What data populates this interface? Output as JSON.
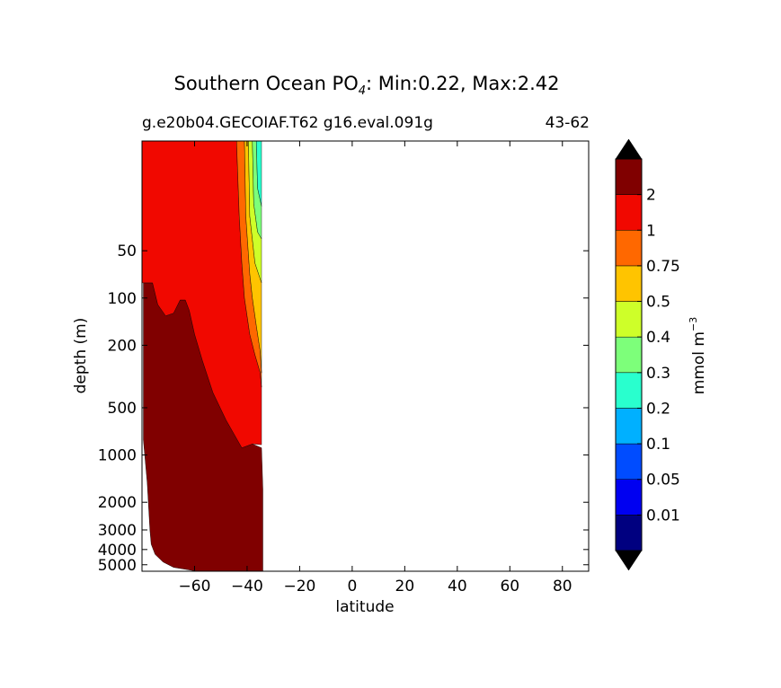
{
  "chart_data": {
    "type": "contour",
    "title_prefix": "Southern Ocean PO",
    "title_subscript": "4",
    "title_suffix": ": Min:0.22, Max:2.42",
    "subtitle_left": "g.e20b04.GECOIAF.T62 g16.eval.091g",
    "subtitle_right": "43-62",
    "xlabel": "latitude",
    "ylabel": "depth (m)",
    "xlim": [
      -80,
      90
    ],
    "ylim_depth": [
      10,
      5500
    ],
    "xticks": [
      {
        "value": -60,
        "label": "−60"
      },
      {
        "value": -40,
        "label": "−40"
      },
      {
        "value": -20,
        "label": "−20"
      },
      {
        "value": 0,
        "label": "0"
      },
      {
        "value": 20,
        "label": "20"
      },
      {
        "value": 40,
        "label": "40"
      },
      {
        "value": 60,
        "label": "60"
      },
      {
        "value": 80,
        "label": "80"
      }
    ],
    "yticks": [
      {
        "value": 50,
        "label": "50"
      },
      {
        "value": 100,
        "label": "100"
      },
      {
        "value": 200,
        "label": "200"
      },
      {
        "value": 500,
        "label": "500"
      },
      {
        "value": 1000,
        "label": "1000"
      },
      {
        "value": 2000,
        "label": "2000"
      },
      {
        "value": 3000,
        "label": "3000"
      },
      {
        "value": 4000,
        "label": "4000"
      },
      {
        "value": 5000,
        "label": "5000"
      }
    ],
    "colorbar": {
      "label_prefix": "mmol m",
      "label_exp": "−3",
      "levels": [
        "0.01",
        "0.05",
        "0.1",
        "0.2",
        "0.3",
        "0.4",
        "0.5",
        "0.75",
        "1",
        "2"
      ],
      "colors": [
        "#000080",
        "#0000f1",
        "#004cff",
        "#00b0ff",
        "#29ffce",
        "#7dff7a",
        "#ceff29",
        "#ffc400",
        "#ff6800",
        "#f10800",
        "#800000"
      ],
      "under_color": "#000000",
      "over_color": "#000000"
    },
    "regions": [
      {
        "name": "deep-maroon",
        "level_min": 2,
        "level_max": 2.42,
        "color": "#800000",
        "outline": [
          [
            -79.5,
            10
          ],
          [
            -79.5,
            800
          ],
          [
            -78,
            1500
          ],
          [
            -77,
            3000
          ],
          [
            -76.5,
            3700
          ],
          [
            -75,
            4300
          ],
          [
            -72,
            4800
          ],
          [
            -68,
            5200
          ],
          [
            -59,
            5500
          ],
          [
            -34,
            5500
          ],
          [
            -34,
            1650
          ],
          [
            -34.5,
            900
          ],
          [
            -38,
            850
          ],
          [
            -42,
            900
          ],
          [
            -48,
            600
          ],
          [
            -53,
            400
          ],
          [
            -57,
            250
          ],
          [
            -60,
            170
          ],
          [
            -62,
            120
          ],
          [
            -63.5,
            103
          ],
          [
            -65.5,
            103
          ],
          [
            -68,
            125
          ],
          [
            -71,
            130
          ],
          [
            -74,
            110
          ],
          [
            -76,
            80
          ],
          [
            -79.5,
            80
          ]
        ]
      },
      {
        "name": "red-1-2",
        "level_min": 1,
        "level_max": 2,
        "color": "#f10800",
        "outline": [
          [
            -80,
            10
          ],
          [
            -44,
            10
          ],
          [
            -43,
            30
          ],
          [
            -42,
            60
          ],
          [
            -41,
            100
          ],
          [
            -39,
            170
          ],
          [
            -37,
            230
          ],
          [
            -35,
            300
          ],
          [
            -34.5,
            370
          ],
          [
            -34.5,
            860
          ],
          [
            -38,
            850
          ],
          [
            -42,
            900
          ],
          [
            -48,
            600
          ],
          [
            -53,
            400
          ],
          [
            -57,
            250
          ],
          [
            -60,
            170
          ],
          [
            -62,
            120
          ],
          [
            -63.5,
            103
          ],
          [
            -65.5,
            103
          ],
          [
            -68,
            125
          ],
          [
            -71,
            130
          ],
          [
            -74,
            110
          ],
          [
            -76,
            80
          ],
          [
            -80,
            80
          ]
        ]
      },
      {
        "name": "orange-0.75-1",
        "level_min": 0.75,
        "level_max": 1,
        "color": "#ff6800",
        "outline": [
          [
            -44,
            10
          ],
          [
            -41,
            10
          ],
          [
            -40.5,
            30
          ],
          [
            -39,
            70
          ],
          [
            -38,
            100
          ],
          [
            -36.5,
            150
          ],
          [
            -35,
            220
          ],
          [
            -34.5,
            300
          ],
          [
            -34.5,
            370
          ],
          [
            -35,
            300
          ],
          [
            -37,
            230
          ],
          [
            -39,
            170
          ],
          [
            -41,
            100
          ],
          [
            -42,
            60
          ],
          [
            -43,
            30
          ]
        ]
      },
      {
        "name": "yellow-0.5-0.75",
        "level_min": 0.5,
        "level_max": 0.75,
        "color": "#ffc400",
        "outline": [
          [
            -41,
            10
          ],
          [
            -39.5,
            10
          ],
          [
            -39,
            30
          ],
          [
            -37,
            60
          ],
          [
            -34.5,
            80
          ],
          [
            -34.5,
            300
          ],
          [
            -35,
            220
          ],
          [
            -36.5,
            150
          ],
          [
            -38,
            100
          ],
          [
            -39,
            70
          ],
          [
            -40.5,
            30
          ]
        ]
      },
      {
        "name": "lime-0.4-0.5",
        "level_min": 0.4,
        "level_max": 0.5,
        "color": "#ceff29",
        "outline": [
          [
            -39.5,
            10
          ],
          [
            -38,
            10
          ],
          [
            -37.5,
            25
          ],
          [
            -36,
            38
          ],
          [
            -34.5,
            42
          ],
          [
            -34.5,
            80
          ],
          [
            -37,
            60
          ],
          [
            -39,
            30
          ]
        ]
      },
      {
        "name": "green-0.3-0.4",
        "level_min": 0.3,
        "level_max": 0.4,
        "color": "#7dff7a",
        "outline": [
          [
            -38,
            10
          ],
          [
            -36.5,
            10
          ],
          [
            -36,
            20
          ],
          [
            -34.5,
            26
          ],
          [
            -34.5,
            42
          ],
          [
            -36,
            38
          ],
          [
            -37.5,
            25
          ]
        ]
      },
      {
        "name": "cyan-0.2-0.3",
        "level_min": 0.2,
        "level_max": 0.3,
        "color": "#29ffce",
        "outline": [
          [
            -36.5,
            10
          ],
          [
            -34.5,
            10
          ],
          [
            -34.5,
            26
          ],
          [
            -36,
            20
          ]
        ]
      }
    ]
  }
}
